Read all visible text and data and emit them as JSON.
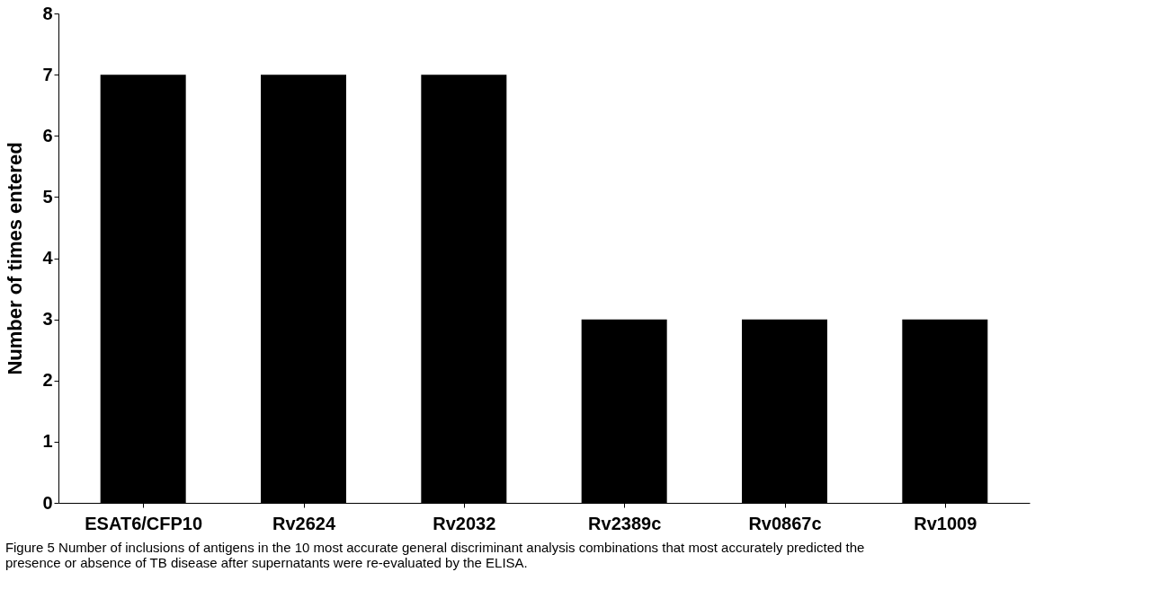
{
  "chart_data": {
    "type": "bar",
    "categories": [
      "ESAT6/CFP10",
      "Rv2624",
      "Rv2032",
      "Rv2389c",
      "Rv0867c",
      "Rv1009"
    ],
    "values": [
      7,
      7,
      7,
      3,
      3,
      3
    ],
    "color": "#000000",
    "ylabel": "Number of times entered",
    "ylim": [
      0,
      8
    ],
    "yticks": [
      0,
      1,
      2,
      3,
      4,
      5,
      6,
      7,
      8
    ],
    "grid": false,
    "annotations": [
      "Figure 5 Number of inclusions of antigens in the 10 most accurate general discriminant analysis combinations that most accurately predicted the presence or absence of TB disease after supernatants were re-evaluated by the ELISA."
    ]
  }
}
